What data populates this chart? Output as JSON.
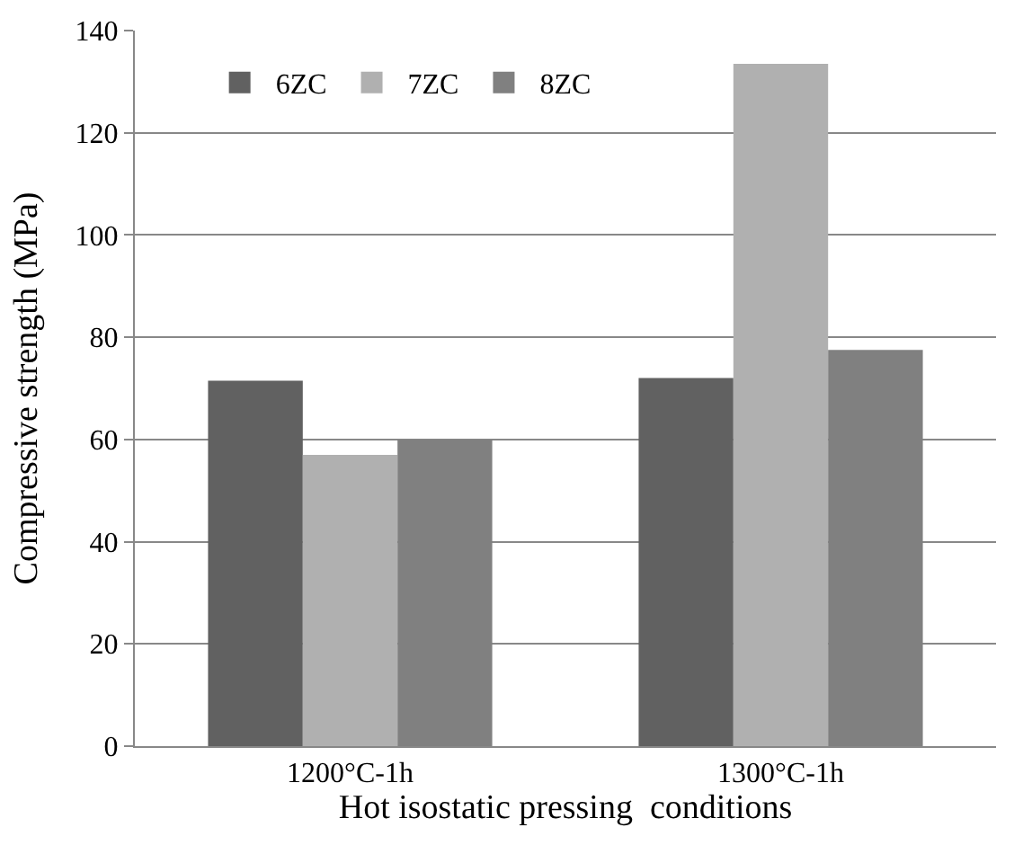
{
  "chart_data": {
    "type": "bar",
    "xlabel": "Hot isostatic pressing  conditions",
    "ylabel": "Compressive strength (MPa)",
    "categories": [
      "1200°C-1h",
      "1300°C-1h"
    ],
    "series": [
      {
        "name": "6ZC",
        "color": "#616161",
        "values": [
          71.5,
          72
        ]
      },
      {
        "name": "7ZC",
        "color": "#b0b0b0",
        "values": [
          57,
          133.5
        ]
      },
      {
        "name": "8ZC",
        "color": "#808080",
        "values": [
          60,
          77.5
        ]
      }
    ],
    "ylim": [
      0,
      140
    ],
    "yticks": [
      0,
      20,
      40,
      60,
      80,
      100,
      120,
      140
    ],
    "grid": "y",
    "legend": "top left"
  }
}
